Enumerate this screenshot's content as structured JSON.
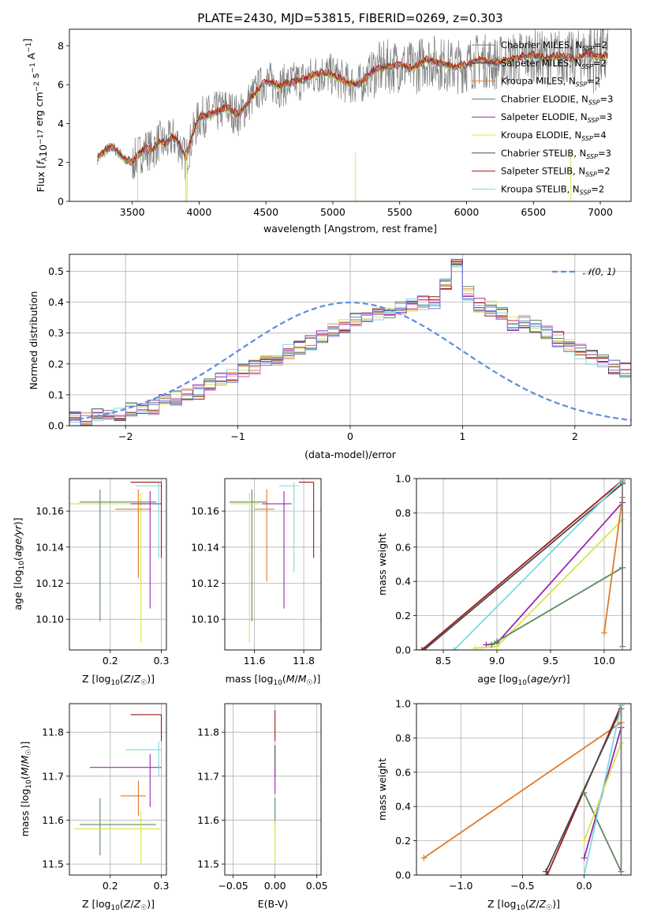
{
  "figure": {
    "title": "PLATE=2430, MJD=53815, FIBERID=0269, z=0.303"
  },
  "colors": {
    "Chabrier MILES": "#7f7f7f",
    "Salpeter MILES": "#3b3b3b",
    "Kroupa MILES": "#e07b28",
    "Chabrier ELODIE": "#5c8a5c",
    "Salpeter ELODIE": "#9b27b0",
    "Kroupa ELODIE": "#d9e44a",
    "Chabrier STELIB": "#4a4a4a",
    "Salpeter STELIB": "#a01818",
    "Kroupa STELIB": "#7fd8e0",
    "gaussian": "#5b8fd9",
    "extra_pink": "#f29bd0",
    "extra_blue": "#6f7fe0"
  },
  "chart_data": [
    {
      "id": "spectrum",
      "type": "line",
      "title": "PLATE=2430, MJD=53815, FIBERID=0269, z=0.303",
      "xlabel": "wavelength [Angstrom, rest frame]",
      "ylabel_parts": [
        "Flux [",
        "f",
        "λ",
        "10",
        "−17",
        " erg cm",
        "−2",
        " s",
        "−1",
        " A",
        "−1",
        "]"
      ],
      "xlim": [
        3030,
        7230
      ],
      "ylim": [
        0,
        8.85
      ],
      "xticks": [
        3500,
        4000,
        4500,
        5000,
        5500,
        6000,
        6500,
        7000
      ],
      "yticks": [
        0,
        2,
        4,
        6,
        8
      ],
      "continuum": {
        "x": [
          3240,
          3300,
          3350,
          3400,
          3450,
          3500,
          3550,
          3600,
          3650,
          3700,
          3750,
          3800,
          3850,
          3900,
          3950,
          4000,
          4100,
          4200,
          4300,
          4400,
          4500,
          4600,
          4700,
          4800,
          4900,
          5000,
          5100,
          5200,
          5300,
          5400,
          5500,
          5600,
          5700,
          5800,
          5900,
          6000,
          6100,
          6200,
          6300,
          6400,
          6500,
          6600,
          6700,
          6800,
          6900,
          7000,
          7050
        ],
        "y": [
          2.2,
          2.6,
          2.8,
          2.5,
          2.1,
          2.0,
          2.4,
          2.7,
          2.6,
          3.1,
          2.9,
          3.3,
          3.0,
          2.1,
          3.4,
          4.3,
          4.5,
          4.8,
          4.4,
          5.4,
          6.2,
          5.9,
          6.1,
          6.3,
          6.6,
          6.5,
          6.1,
          6.0,
          6.7,
          6.9,
          7.0,
          6.8,
          7.3,
          7.1,
          6.9,
          7.0,
          7.3,
          7.1,
          7.2,
          7.4,
          7.5,
          7.3,
          7.5,
          7.3,
          7.6,
          7.4,
          7.5
        ]
      },
      "legend": [
        {
          "name": "Chabrier MILES",
          "nssp": "2"
        },
        {
          "name": "Salpeter MILES",
          "nssp": "2"
        },
        {
          "name": "Kroupa MILES",
          "nssp": "2"
        },
        {
          "name": "Chabrier ELODIE",
          "nssp": "3"
        },
        {
          "name": "Salpeter ELODIE",
          "nssp": "3"
        },
        {
          "name": "Kroupa ELODIE",
          "nssp": "4"
        },
        {
          "name": "Chabrier STELIB",
          "nssp": "3"
        },
        {
          "name": "Salpeter STELIB",
          "nssp": "2"
        },
        {
          "name": "Kroupa STELIB",
          "nssp": "2"
        }
      ]
    },
    {
      "id": "residuals",
      "type": "histogram",
      "xlabel": "(data-model)/error",
      "ylabel": "Normed distribution",
      "xlim": [
        -2.5,
        2.5
      ],
      "ylim": [
        0,
        0.555
      ],
      "xticks": [
        -2,
        -1,
        0,
        1,
        2
      ],
      "yticks": [
        0.0,
        0.1,
        0.2,
        0.3,
        0.4,
        0.5
      ],
      "legend_label": "𝒩(0, 1)",
      "bin_width": 0.1,
      "bin_start": -2.5,
      "reference_values": [
        0.02,
        0.02,
        0.03,
        0.03,
        0.04,
        0.05,
        0.05,
        0.06,
        0.08,
        0.09,
        0.1,
        0.11,
        0.13,
        0.15,
        0.16,
        0.18,
        0.19,
        0.21,
        0.22,
        0.24,
        0.25,
        0.27,
        0.29,
        0.31,
        0.32,
        0.34,
        0.35,
        0.36,
        0.37,
        0.38,
        0.39,
        0.4,
        0.4,
        0.45,
        0.52,
        0.43,
        0.39,
        0.38,
        0.36,
        0.33,
        0.34,
        0.32,
        0.3,
        0.28,
        0.26,
        0.24,
        0.22,
        0.21,
        0.19,
        0.18,
        0.16,
        0.15,
        0.13,
        0.12,
        0.1,
        0.09,
        0.08,
        0.07,
        0.06,
        0.05,
        0.05,
        0.04,
        0.04,
        0.03,
        0.03,
        0.03,
        0.02,
        0.02,
        0.02,
        0.02
      ]
    },
    {
      "id": "age_vs_Z",
      "type": "errorbar",
      "xlabel": "Z [log10(Z/Z☉)]",
      "ylabel": "age [log10(age/yr)]",
      "xlim": [
        0.12,
        0.31
      ],
      "ylim": [
        10.083,
        10.178
      ],
      "xticks": [
        0.2,
        0.3
      ],
      "yticks": [
        10.1,
        10.12,
        10.14,
        10.16
      ],
      "points": [
        {
          "series": "Kroupa ELODIE",
          "x": 0.26,
          "xlo": 0.12,
          "xhi": 0.3,
          "y": 10.164,
          "ylo": 10.087,
          "yhi": 10.17
        },
        {
          "series": "Chabrier ELODIE",
          "x": 0.18,
          "xlo": 0.14,
          "xhi": 0.29,
          "y": 10.165,
          "ylo": 10.099,
          "yhi": 10.172
        },
        {
          "series": "Kroupa MILES",
          "x": 0.255,
          "xlo": 0.21,
          "xhi": 0.28,
          "y": 10.161,
          "ylo": 10.123,
          "yhi": 10.172
        },
        {
          "series": "Salpeter ELODIE",
          "x": 0.278,
          "xlo": 0.24,
          "xhi": 0.3,
          "y": 10.164,
          "ylo": 10.106,
          "yhi": 10.171
        },
        {
          "series": "Kroupa STELIB",
          "x": 0.295,
          "xlo": 0.25,
          "xhi": 0.3,
          "y": 10.174,
          "ylo": 10.134,
          "yhi": 10.176
        },
        {
          "series": "Salpeter STELIB",
          "x": 0.3,
          "xlo": 0.24,
          "xhi": 0.3,
          "y": 10.176,
          "ylo": 10.134,
          "yhi": 10.176
        }
      ]
    },
    {
      "id": "age_vs_mass",
      "type": "errorbar",
      "xlabel": "mass [log10(M/M☉)]",
      "ylabel": "",
      "xlim": [
        11.48,
        11.87
      ],
      "ylim": [
        10.083,
        10.178
      ],
      "xticks": [
        11.6,
        11.8
      ],
      "yticks": [
        10.1,
        10.12,
        10.14,
        10.16
      ],
      "points": [
        {
          "series": "Chabrier ELODIE",
          "x": 11.59,
          "xlo": 11.5,
          "xhi": 11.65,
          "y": 10.165,
          "ylo": 10.099,
          "yhi": 10.172
        },
        {
          "series": "Kroupa ELODIE",
          "x": 11.58,
          "xlo": 11.5,
          "xhi": 11.62,
          "y": 10.164,
          "ylo": 10.087,
          "yhi": 10.17
        },
        {
          "series": "Kroupa MILES",
          "x": 11.65,
          "xlo": 11.6,
          "xhi": 11.68,
          "y": 10.161,
          "ylo": 10.121,
          "yhi": 10.172
        },
        {
          "series": "Salpeter ELODIE",
          "x": 11.72,
          "xlo": 11.63,
          "xhi": 11.75,
          "y": 10.164,
          "ylo": 10.106,
          "yhi": 10.171
        },
        {
          "series": "Kroupa STELIB",
          "x": 11.76,
          "xlo": 11.7,
          "xhi": 11.78,
          "y": 10.174,
          "ylo": 10.126,
          "yhi": 10.176
        },
        {
          "series": "Salpeter STELIB",
          "x": 11.84,
          "xlo": 11.78,
          "xhi": 11.84,
          "y": 10.176,
          "ylo": 10.134,
          "yhi": 10.176
        }
      ]
    },
    {
      "id": "massweight_vs_age",
      "type": "line",
      "xlabel": "age  [log10(age/yr)]",
      "ylabel": "mass weight",
      "xlim": [
        8.25,
        10.25
      ],
      "ylim": [
        0,
        1.0
      ],
      "xticks": [
        8.5,
        9.0,
        9.5,
        10.0
      ],
      "yticks": [
        0.0,
        0.2,
        0.4,
        0.6,
        0.8,
        1.0
      ],
      "lines": [
        {
          "series": "Salpeter STELIB",
          "x": [
            8.3,
            10.17
          ],
          "y": [
            0.0,
            0.99
          ]
        },
        {
          "series": "Chabrier STELIB",
          "x": [
            8.32,
            10.17
          ],
          "y": [
            0.0,
            0.97
          ]
        },
        {
          "series": "Kroupa STELIB",
          "x": [
            8.6,
            10.17
          ],
          "y": [
            0.0,
            0.99
          ]
        },
        {
          "series": "Salpeter ELODIE",
          "x": [
            8.9,
            9.0,
            10.17
          ],
          "y": [
            0.03,
            0.04,
            0.86
          ]
        },
        {
          "series": "Kroupa ELODIE",
          "x": [
            8.8,
            9.0,
            10.17
          ],
          "y": [
            0.01,
            0.02,
            0.76
          ]
        },
        {
          "series": "Chabrier ELODIE",
          "x": [
            8.95,
            9.0,
            10.17
          ],
          "y": [
            0.03,
            0.05,
            0.48
          ]
        },
        {
          "series": "Kroupa MILES",
          "x": [
            10.0,
            10.17
          ],
          "y": [
            0.1,
            0.89
          ]
        },
        {
          "series": "Chabrier MILES",
          "x": [
            10.17,
            10.17
          ],
          "y": [
            0.02,
            0.98
          ]
        }
      ]
    },
    {
      "id": "mass_vs_Z",
      "type": "errorbar",
      "xlabel": "Z [log10(Z/Z☉)]",
      "ylabel": "mass [log10(M/M☉)]",
      "xlim": [
        0.12,
        0.31
      ],
      "ylim": [
        11.475,
        11.865
      ],
      "xticks": [
        0.2,
        0.3
      ],
      "yticks": [
        11.5,
        11.6,
        11.7,
        11.8
      ],
      "points": [
        {
          "series": "Chabrier ELODIE",
          "x": 0.18,
          "xlo": 0.14,
          "xhi": 0.29,
          "y": 11.59,
          "ylo": 11.52,
          "yhi": 11.65
        },
        {
          "series": "Kroupa ELODIE",
          "x": 0.26,
          "xlo": 0.13,
          "xhi": 0.3,
          "y": 11.58,
          "ylo": 11.5,
          "yhi": 11.62
        },
        {
          "series": "Kroupa MILES",
          "x": 0.255,
          "xlo": 0.22,
          "xhi": 0.27,
          "y": 11.655,
          "ylo": 11.61,
          "yhi": 11.69
        },
        {
          "series": "Salpeter ELODIE",
          "x": 0.278,
          "xlo": 0.16,
          "xhi": 0.3,
          "y": 11.72,
          "ylo": 11.63,
          "yhi": 11.75
        },
        {
          "series": "Kroupa STELIB",
          "x": 0.295,
          "xlo": 0.23,
          "xhi": 0.3,
          "y": 11.76,
          "ylo": 11.7,
          "yhi": 11.78
        },
        {
          "series": "Salpeter STELIB",
          "x": 0.3,
          "xlo": 0.24,
          "xhi": 0.3,
          "y": 11.84,
          "ylo": 11.78,
          "yhi": 11.84
        }
      ]
    },
    {
      "id": "mass_vs_ebv",
      "type": "errorbar",
      "xlabel": "E(B-V)",
      "ylabel": "",
      "xlim": [
        -0.06,
        0.055
      ],
      "ylim": [
        11.475,
        11.865
      ],
      "xticks": [
        -0.05,
        0.0,
        0.05
      ],
      "xticklabels": [
        "−0.05",
        "0.00",
        "0.05"
      ],
      "yticks": [
        11.5,
        11.6,
        11.7,
        11.8
      ],
      "points": [
        {
          "series": "Salpeter STELIB",
          "x": 0.0,
          "ylo": 11.78,
          "yhi": 11.85
        },
        {
          "series": "Chabrier STELIB",
          "x": 0.0,
          "ylo": 11.7,
          "yhi": 11.77
        },
        {
          "series": "Salpeter ELODIE",
          "x": 0.0,
          "ylo": 11.66,
          "yhi": 11.72
        },
        {
          "series": "Chabrier ELODIE",
          "x": 0.0,
          "ylo": 11.59,
          "yhi": 11.65
        },
        {
          "series": "Kroupa ELODIE",
          "x": 0.0,
          "ylo": 11.5,
          "yhi": 11.6
        }
      ]
    },
    {
      "id": "massweight_vs_Z",
      "type": "line",
      "xlabel": "Z [log10(Z/Z☉)]",
      "ylabel": "mass weight",
      "xlim": [
        -1.36,
        0.38
      ],
      "ylim": [
        0,
        1.0
      ],
      "xticks": [
        -1.0,
        -0.5,
        0.0
      ],
      "xticklabels": [
        "−1.0",
        "−0.5",
        "0.0"
      ],
      "yticks": [
        0.0,
        0.2,
        0.4,
        0.6,
        0.8,
        1.0
      ],
      "lines": [
        {
          "series": "Kroupa MILES",
          "x": [
            -1.3,
            0.3
          ],
          "y": [
            0.1,
            0.89
          ]
        },
        {
          "series": "Salpeter STELIB",
          "x": [
            -0.3,
            0.3
          ],
          "y": [
            0.0,
            0.99
          ]
        },
        {
          "series": "Chabrier STELIB",
          "x": [
            -0.31,
            0.3
          ],
          "y": [
            0.02,
            0.97
          ]
        },
        {
          "series": "Chabrier ELODIE",
          "x": [
            0.0,
            0.3
          ],
          "y": [
            0.48,
            0.02
          ]
        },
        {
          "series": "Salpeter ELODIE",
          "x": [
            0.0,
            0.3
          ],
          "y": [
            0.1,
            0.86
          ]
        },
        {
          "series": "Kroupa ELODIE",
          "x": [
            0.0,
            0.3
          ],
          "y": [
            0.2,
            0.77
          ]
        },
        {
          "series": "Kroupa STELIB",
          "x": [
            0.0,
            0.3
          ],
          "y": [
            0.0,
            0.99
          ]
        },
        {
          "series": "Chabrier MILES",
          "x": [
            0.3,
            0.3
          ],
          "y": [
            0.02,
            0.97
          ]
        }
      ]
    }
  ]
}
